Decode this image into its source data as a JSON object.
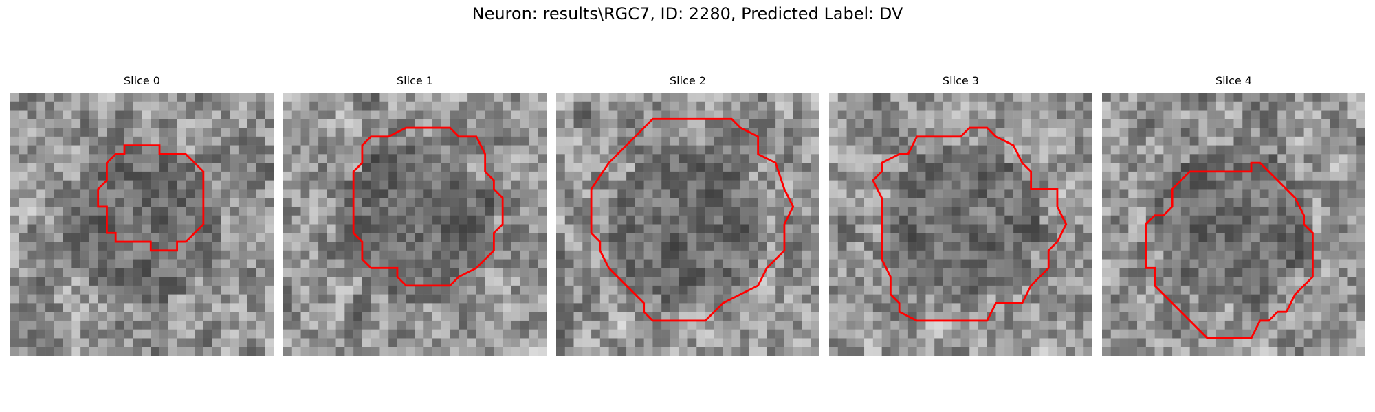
{
  "figure_title": "Neuron: results\\RGC7, ID: 2280, Predicted Label: DV",
  "outline_color": "#ff0000",
  "panels": [
    {
      "title": "Slice 0"
    },
    {
      "title": "Slice 1"
    },
    {
      "title": "Slice 2"
    },
    {
      "title": "Slice 3"
    },
    {
      "title": "Slice 4"
    }
  ]
}
